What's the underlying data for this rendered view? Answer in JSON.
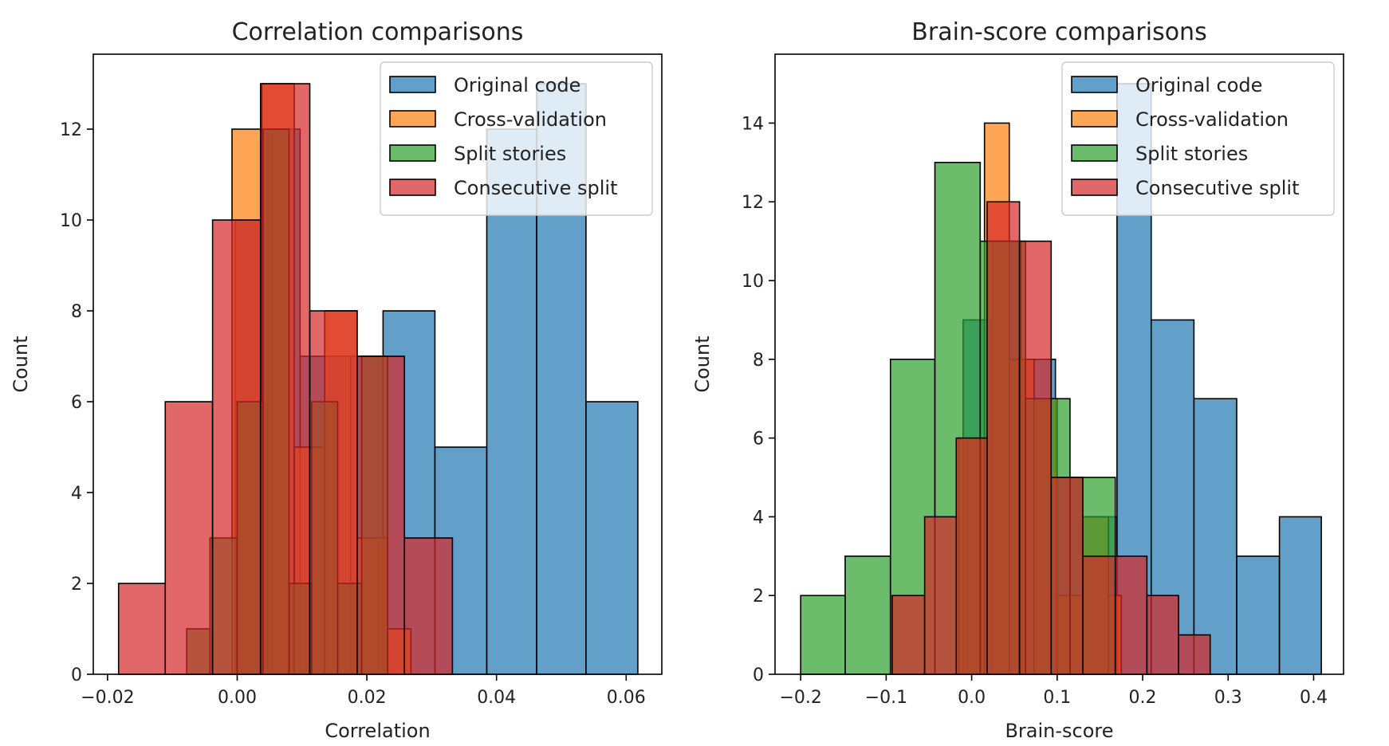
{
  "figure": {
    "panels": [
      "left",
      "right"
    ]
  },
  "chart_data": [
    {
      "type": "bar",
      "subtype": "histogram",
      "title": "Correlation comparisons",
      "xlabel": "Correlation",
      "ylabel": "Count",
      "xlim": [
        -0.0222,
        0.0655
      ],
      "ylim": [
        0,
        13.65
      ],
      "xticks": [
        -0.02,
        0.0,
        0.02,
        0.04,
        0.06
      ],
      "xtick_labels": [
        "−0.02",
        "0.00",
        "0.02",
        "0.04",
        "0.06"
      ],
      "yticks": [
        0,
        2,
        4,
        6,
        8,
        10,
        12
      ],
      "ytick_labels": [
        "0",
        "2",
        "4",
        "6",
        "8",
        "10",
        "12"
      ],
      "grid": false,
      "legend_position": "top-right",
      "series": [
        {
          "name": "Original code",
          "color": "#1f77b4",
          "bins": [
            {
              "x0": -0.0003,
              "x1": 0.0047,
              "count": 10
            },
            {
              "x0": 0.0047,
              "x1": 0.0097,
              "count": 12
            },
            {
              "x0": 0.0097,
              "x1": 0.0175,
              "count": 7
            },
            {
              "x0": 0.0175,
              "x1": 0.0225,
              "count": 7
            },
            {
              "x0": 0.0225,
              "x1": 0.0305,
              "count": 8
            },
            {
              "x0": 0.0305,
              "x1": 0.0385,
              "count": 5
            },
            {
              "x0": 0.0385,
              "x1": 0.0462,
              "count": 12
            },
            {
              "x0": 0.0462,
              "x1": 0.0538,
              "count": 13
            },
            {
              "x0": 0.0538,
              "x1": 0.0618,
              "count": 6
            }
          ]
        },
        {
          "name": "Cross-validation",
          "color": "#ff7f0e",
          "bins": [
            {
              "x0": -0.0008,
              "x1": 0.0038,
              "count": 12
            },
            {
              "x0": 0.0038,
              "x1": 0.0088,
              "count": 13
            },
            {
              "x0": 0.0088,
              "x1": 0.0135,
              "count": 5
            },
            {
              "x0": 0.0135,
              "x1": 0.0185,
              "count": 8
            },
            {
              "x0": 0.0185,
              "x1": 0.0232,
              "count": 3
            },
            {
              "x0": 0.0232,
              "x1": 0.0268,
              "count": 1
            }
          ]
        },
        {
          "name": "Split stories",
          "color": "#2ca02c",
          "bins": [
            {
              "x0": -0.0078,
              "x1": -0.0042,
              "count": 1
            },
            {
              "x0": -0.0042,
              "x1": 0.0,
              "count": 3
            },
            {
              "x0": 0.0,
              "x1": 0.004,
              "count": 6
            },
            {
              "x0": 0.004,
              "x1": 0.008,
              "count": 12
            },
            {
              "x0": 0.008,
              "x1": 0.0115,
              "count": 2
            },
            {
              "x0": 0.0115,
              "x1": 0.0155,
              "count": 6
            },
            {
              "x0": 0.0155,
              "x1": 0.0192,
              "count": 2
            },
            {
              "x0": 0.0192,
              "x1": 0.0232,
              "count": 7
            }
          ]
        },
        {
          "name": "Consecutive split",
          "color": "#d62728",
          "bins": [
            {
              "x0": -0.0183,
              "x1": -0.0111,
              "count": 2
            },
            {
              "x0": -0.0111,
              "x1": -0.0038,
              "count": 6
            },
            {
              "x0": -0.0038,
              "x1": 0.0036,
              "count": 10
            },
            {
              "x0": 0.0036,
              "x1": 0.0112,
              "count": 13
            },
            {
              "x0": 0.0112,
              "x1": 0.0185,
              "count": 8
            },
            {
              "x0": 0.0185,
              "x1": 0.0258,
              "count": 7
            },
            {
              "x0": 0.0258,
              "x1": 0.0332,
              "count": 3
            }
          ]
        }
      ]
    },
    {
      "type": "bar",
      "subtype": "histogram",
      "title": "Brain-score comparisons",
      "xlabel": "Brain-score",
      "ylabel": "Count",
      "xlim": [
        -0.23,
        0.435
      ],
      "ylim": [
        0,
        15.75
      ],
      "xticks": [
        -0.2,
        -0.1,
        0.0,
        0.1,
        0.2,
        0.3,
        0.4
      ],
      "xtick_labels": [
        "−0.2",
        "−0.1",
        "0.0",
        "0.1",
        "0.2",
        "0.3",
        "0.4"
      ],
      "yticks": [
        0,
        2,
        4,
        6,
        8,
        10,
        12,
        14
      ],
      "ytick_labels": [
        "0",
        "2",
        "4",
        "6",
        "8",
        "10",
        "12",
        "14"
      ],
      "grid": false,
      "legend_position": "top-right",
      "series": [
        {
          "name": "Original code",
          "color": "#1f77b4",
          "bins": [
            {
              "x0": -0.01,
              "x1": 0.024,
              "count": 9
            },
            {
              "x0": 0.024,
              "x1": 0.058,
              "count": 11
            },
            {
              "x0": 0.058,
              "x1": 0.098,
              "count": 8
            },
            {
              "x0": 0.098,
              "x1": 0.13,
              "count": 5
            },
            {
              "x0": 0.13,
              "x1": 0.17,
              "count": 4
            },
            {
              "x0": 0.17,
              "x1": 0.21,
              "count": 15
            },
            {
              "x0": 0.21,
              "x1": 0.26,
              "count": 9
            },
            {
              "x0": 0.26,
              "x1": 0.31,
              "count": 7
            },
            {
              "x0": 0.31,
              "x1": 0.36,
              "count": 3
            },
            {
              "x0": 0.36,
              "x1": 0.409,
              "count": 4
            }
          ]
        },
        {
          "name": "Cross-validation",
          "color": "#ff7f0e",
          "bins": [
            {
              "x0": -0.015,
              "x1": 0.015,
              "count": 6
            },
            {
              "x0": 0.015,
              "x1": 0.044,
              "count": 14
            },
            {
              "x0": 0.044,
              "x1": 0.073,
              "count": 8
            },
            {
              "x0": 0.073,
              "x1": 0.1,
              "count": 7
            },
            {
              "x0": 0.1,
              "x1": 0.13,
              "count": 2
            },
            {
              "x0": 0.13,
              "x1": 0.16,
              "count": 4
            },
            {
              "x0": 0.16,
              "x1": 0.175,
              "count": 2
            }
          ]
        },
        {
          "name": "Split stories",
          "color": "#2ca02c",
          "bins": [
            {
              "x0": -0.2,
              "x1": -0.148,
              "count": 2
            },
            {
              "x0": -0.148,
              "x1": -0.095,
              "count": 3
            },
            {
              "x0": -0.095,
              "x1": -0.043,
              "count": 8
            },
            {
              "x0": -0.043,
              "x1": 0.01,
              "count": 13
            },
            {
              "x0": 0.01,
              "x1": 0.063,
              "count": 11
            },
            {
              "x0": 0.063,
              "x1": 0.115,
              "count": 7
            },
            {
              "x0": 0.115,
              "x1": 0.168,
              "count": 5
            }
          ]
        },
        {
          "name": "Consecutive split",
          "color": "#d62728",
          "bins": [
            {
              "x0": -0.093,
              "x1": -0.055,
              "count": 2
            },
            {
              "x0": -0.055,
              "x1": -0.018,
              "count": 4
            },
            {
              "x0": -0.018,
              "x1": 0.018,
              "count": 6
            },
            {
              "x0": 0.018,
              "x1": 0.056,
              "count": 12
            },
            {
              "x0": 0.056,
              "x1": 0.093,
              "count": 11
            },
            {
              "x0": 0.093,
              "x1": 0.13,
              "count": 5
            },
            {
              "x0": 0.13,
              "x1": 0.168,
              "count": 3
            },
            {
              "x0": 0.168,
              "x1": 0.205,
              "count": 3
            },
            {
              "x0": 0.205,
              "x1": 0.242,
              "count": 2
            },
            {
              "x0": 0.242,
              "x1": 0.279,
              "count": 1
            }
          ]
        }
      ]
    }
  ]
}
